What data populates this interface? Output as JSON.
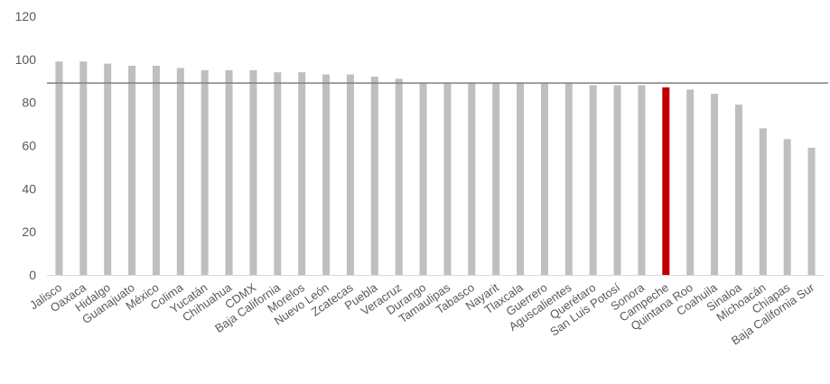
{
  "chart_data": {
    "type": "bar",
    "categories": [
      "Jalisco",
      "Oaxaca",
      "Hidalgo",
      "Guanajuato",
      "México",
      "Colima",
      "Yucatán",
      "Chihuahua",
      "CDMX",
      "Baja California",
      "Morelos",
      "Nuevo León",
      "Zcatecas",
      "Puebla",
      "Veracruz",
      "Durango",
      "Tamaulipas",
      "Tabasco",
      "Nayarit",
      "Tlaxcala",
      "Guerrero",
      "Aguscalientes",
      "Querétaro",
      "San Luis Potosí",
      "Sonora",
      "Campeche",
      "Quintana Roo",
      "Coahuila",
      "Sinaloa",
      "Michoacán",
      "Chiapas",
      "Baja California Sur"
    ],
    "values": [
      99,
      99,
      98,
      97,
      97,
      96,
      95,
      95,
      95,
      94,
      94,
      93,
      93,
      92,
      91,
      89,
      89,
      89,
      89,
      89,
      89,
      89,
      88,
      88,
      88,
      87,
      86,
      84,
      79,
      68,
      63,
      59
    ],
    "highlight_category": "Campeche",
    "reference_line": 89,
    "ylim": [
      0,
      120
    ],
    "yticks": [
      0,
      20,
      40,
      60,
      80,
      100,
      120
    ],
    "title": "",
    "xlabel": "",
    "ylabel": "",
    "grid": false,
    "colors": {
      "bar": "#bfbfbf",
      "highlight": "#c00000",
      "reference_line": "#808080",
      "axis": "#d9d9d9",
      "text": "#595959"
    }
  }
}
